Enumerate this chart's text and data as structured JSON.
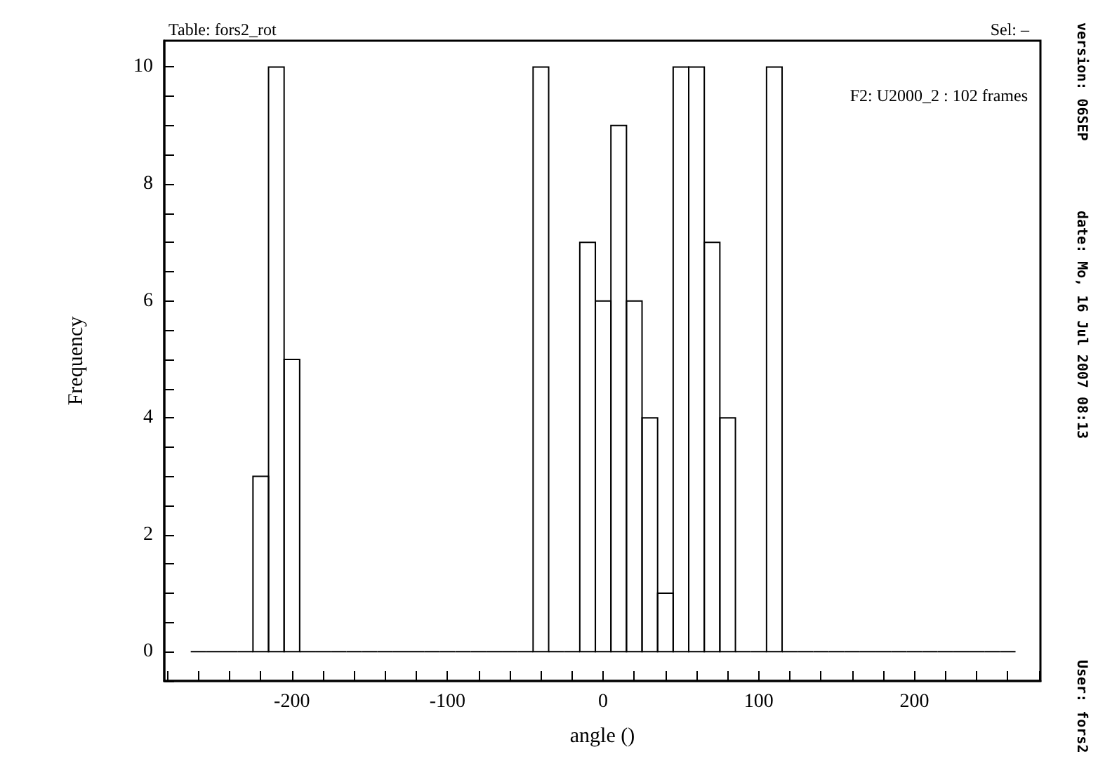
{
  "chart_data": {
    "type": "histogram",
    "title": "Table: fors2_rot",
    "subtitle": "Sel: –",
    "xlabel": "angle ()",
    "ylabel": "Frequency",
    "annotations": [
      "F2: U2000_2 : 102 frames",
      "version: 06SEP",
      "date: Mo, 16 Jul 2007 08:13",
      "User: fors2"
    ],
    "bins": [
      -265,
      -255,
      -245,
      -235,
      -225,
      -215,
      -205,
      -195,
      -185,
      -175,
      -165,
      -155,
      -145,
      -135,
      -125,
      -115,
      -105,
      -95,
      -85,
      -75,
      -65,
      -55,
      -45,
      -35,
      -25,
      -15,
      -5,
      5,
      15,
      25,
      35,
      45,
      55,
      65,
      75,
      85,
      95,
      105,
      115,
      125,
      135,
      145,
      155,
      165,
      175,
      185,
      195,
      205,
      215,
      225,
      235,
      245,
      255,
      265
    ],
    "values": [
      0,
      0,
      0,
      0,
      3,
      10,
      5,
      0,
      0,
      0,
      0,
      0,
      0,
      0,
      0,
      0,
      0,
      0,
      0,
      0,
      0,
      0,
      10,
      0,
      0,
      7,
      6,
      9,
      6,
      4,
      1,
      10,
      10,
      7,
      4,
      0,
      0,
      10,
      0,
      0,
      0,
      0,
      0,
      0,
      0,
      0,
      0,
      0,
      0,
      0,
      0,
      0,
      0
    ],
    "color": "#000000",
    "xlim": [
      -282,
      281
    ],
    "xticks": [
      {
        "value": -280,
        "label": null
      },
      {
        "value": -260,
        "label": null
      },
      {
        "value": -240,
        "label": null
      },
      {
        "value": -220,
        "label": null
      },
      -200,
      {
        "value": -180,
        "label": null
      },
      {
        "value": -160,
        "label": null
      },
      {
        "value": -140,
        "label": null
      },
      {
        "value": -120,
        "label": null
      },
      -100,
      {
        "value": -80,
        "label": null
      },
      {
        "value": -60,
        "label": null
      },
      {
        "value": -40,
        "label": null
      },
      {
        "value": -20,
        "label": null
      },
      0,
      {
        "value": 20,
        "label": null
      },
      {
        "value": 40,
        "label": null
      },
      {
        "value": 60,
        "label": null
      },
      {
        "value": 80,
        "label": null
      },
      100,
      {
        "value": 120,
        "label": null
      },
      {
        "value": 140,
        "label": null
      },
      {
        "value": 160,
        "label": null
      },
      {
        "value": 180,
        "label": null
      },
      200,
      {
        "value": 220,
        "label": null
      },
      {
        "value": 240,
        "label": null
      },
      {
        "value": 260,
        "label": null
      },
      {
        "value": 280,
        "label": null
      }
    ],
    "ylim": [
      -0.5,
      10.45
    ],
    "yticks": [
      {
        "value": -0.5,
        "label": null
      },
      0,
      {
        "value": 0.5,
        "label": null
      },
      {
        "value": 1,
        "label": null
      },
      {
        "value": 1.5,
        "label": null
      },
      2,
      {
        "value": 2.5,
        "label": null
      },
      {
        "value": 3,
        "label": null
      },
      {
        "value": 3.5,
        "label": null
      },
      4,
      {
        "value": 4.5,
        "label": null
      },
      {
        "value": 5,
        "label": null
      },
      {
        "value": 5.5,
        "label": null
      },
      6,
      {
        "value": 6.5,
        "label": null
      },
      {
        "value": 7,
        "label": null
      },
      {
        "value": 7.5,
        "label": null
      },
      8,
      {
        "value": 8.5,
        "label": null
      },
      {
        "value": 9,
        "label": null
      },
      {
        "value": 9.5,
        "label": null
      },
      10
    ],
    "grid": false
  }
}
